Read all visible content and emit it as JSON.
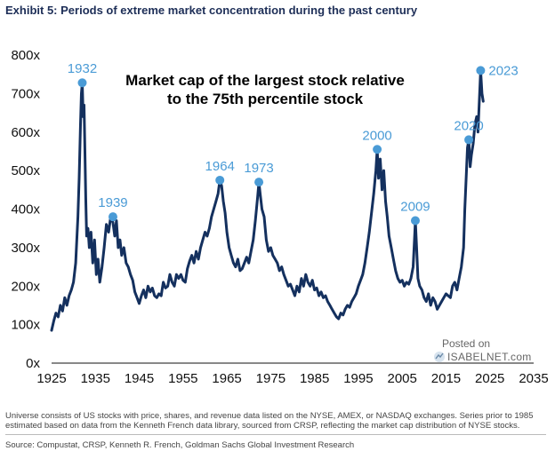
{
  "header": {
    "exhibit_title": "Exhibit 5: Periods of extreme market concentration during the past century"
  },
  "chart_data": {
    "type": "line",
    "title": "Market cap of the largest stock relative\nto the 75th percentile stock",
    "title_lines": [
      "Market cap of the largest stock relative",
      "to the 75th percentile stock"
    ],
    "xlabel": "",
    "ylabel": "",
    "xlim": [
      1925,
      2035
    ],
    "ylim": [
      0,
      800
    ],
    "x_ticks": [
      1925,
      1935,
      1945,
      1955,
      1965,
      1975,
      1985,
      1995,
      2005,
      2015,
      2025,
      2035
    ],
    "y_ticks": [
      0,
      100,
      200,
      300,
      400,
      500,
      600,
      700,
      800
    ],
    "y_tick_labels": [
      "0x",
      "100x",
      "200x",
      "300x",
      "400x",
      "500x",
      "600x",
      "700x",
      "800x"
    ],
    "series": [
      {
        "name": "Largest stock / 75th percentile stock",
        "color": "#14305e",
        "points": [
          [
            1925.0,
            85
          ],
          [
            1925.5,
            110
          ],
          [
            1926.0,
            130
          ],
          [
            1926.5,
            120
          ],
          [
            1927.0,
            150
          ],
          [
            1927.5,
            135
          ],
          [
            1928.0,
            170
          ],
          [
            1928.5,
            150
          ],
          [
            1929.0,
            175
          ],
          [
            1929.5,
            190
          ],
          [
            1930.0,
            210
          ],
          [
            1930.5,
            260
          ],
          [
            1931.0,
            380
          ],
          [
            1931.3,
            480
          ],
          [
            1931.6,
            620
          ],
          [
            1931.8,
            700
          ],
          [
            1932.0,
            728
          ],
          [
            1932.2,
            640
          ],
          [
            1932.4,
            670
          ],
          [
            1932.6,
            560
          ],
          [
            1932.8,
            430
          ],
          [
            1933.0,
            330
          ],
          [
            1933.3,
            350
          ],
          [
            1933.6,
            300
          ],
          [
            1934.0,
            340
          ],
          [
            1934.4,
            260
          ],
          [
            1934.8,
            320
          ],
          [
            1935.2,
            230
          ],
          [
            1935.6,
            270
          ],
          [
            1936.0,
            210
          ],
          [
            1936.5,
            250
          ],
          [
            1937.0,
            300
          ],
          [
            1937.5,
            360
          ],
          [
            1938.0,
            340
          ],
          [
            1938.5,
            380
          ],
          [
            1939.0,
            365
          ],
          [
            1939.4,
            330
          ],
          [
            1939.8,
            370
          ],
          [
            1940.2,
            300
          ],
          [
            1940.6,
            320
          ],
          [
            1941.0,
            280
          ],
          [
            1941.5,
            300
          ],
          [
            1942.0,
            260
          ],
          [
            1942.5,
            250
          ],
          [
            1943.0,
            230
          ],
          [
            1943.5,
            215
          ],
          [
            1944.0,
            185
          ],
          [
            1944.5,
            170
          ],
          [
            1945.0,
            155
          ],
          [
            1945.5,
            175
          ],
          [
            1946.0,
            190
          ],
          [
            1946.5,
            170
          ],
          [
            1947.0,
            200
          ],
          [
            1947.5,
            185
          ],
          [
            1948.0,
            195
          ],
          [
            1948.5,
            175
          ],
          [
            1949.0,
            170
          ],
          [
            1949.5,
            180
          ],
          [
            1950.0,
            175
          ],
          [
            1950.5,
            210
          ],
          [
            1951.0,
            195
          ],
          [
            1951.5,
            200
          ],
          [
            1952.0,
            230
          ],
          [
            1952.5,
            210
          ],
          [
            1953.0,
            200
          ],
          [
            1953.5,
            230
          ],
          [
            1954.0,
            220
          ],
          [
            1954.5,
            230
          ],
          [
            1955.0,
            215
          ],
          [
            1955.5,
            210
          ],
          [
            1956.0,
            245
          ],
          [
            1956.5,
            265
          ],
          [
            1957.0,
            280
          ],
          [
            1957.5,
            260
          ],
          [
            1958.0,
            290
          ],
          [
            1958.5,
            270
          ],
          [
            1959.0,
            300
          ],
          [
            1959.5,
            320
          ],
          [
            1960.0,
            340
          ],
          [
            1960.5,
            330
          ],
          [
            1961.0,
            350
          ],
          [
            1961.5,
            380
          ],
          [
            1962.0,
            400
          ],
          [
            1962.5,
            420
          ],
          [
            1963.0,
            440
          ],
          [
            1963.4,
            475
          ],
          [
            1963.8,
            460
          ],
          [
            1964.2,
            420
          ],
          [
            1964.6,
            390
          ],
          [
            1965.0,
            340
          ],
          [
            1965.5,
            300
          ],
          [
            1966.0,
            280
          ],
          [
            1966.5,
            260
          ],
          [
            1967.0,
            250
          ],
          [
            1967.5,
            270
          ],
          [
            1968.0,
            240
          ],
          [
            1968.5,
            245
          ],
          [
            1969.0,
            260
          ],
          [
            1969.5,
            275
          ],
          [
            1970.0,
            260
          ],
          [
            1970.5,
            290
          ],
          [
            1971.0,
            320
          ],
          [
            1971.5,
            370
          ],
          [
            1972.0,
            430
          ],
          [
            1972.3,
            470
          ],
          [
            1972.6,
            440
          ],
          [
            1973.0,
            400
          ],
          [
            1973.5,
            380
          ],
          [
            1974.0,
            320
          ],
          [
            1974.5,
            290
          ],
          [
            1975.0,
            300
          ],
          [
            1975.5,
            280
          ],
          [
            1976.0,
            270
          ],
          [
            1976.5,
            260
          ],
          [
            1977.0,
            240
          ],
          [
            1977.5,
            250
          ],
          [
            1978.0,
            230
          ],
          [
            1978.5,
            215
          ],
          [
            1979.0,
            200
          ],
          [
            1979.5,
            205
          ],
          [
            1980.0,
            190
          ],
          [
            1980.5,
            175
          ],
          [
            1981.0,
            200
          ],
          [
            1981.5,
            185
          ],
          [
            1982.0,
            220
          ],
          [
            1982.5,
            200
          ],
          [
            1983.0,
            230
          ],
          [
            1983.5,
            210
          ],
          [
            1984.0,
            200
          ],
          [
            1984.5,
            215
          ],
          [
            1985.0,
            190
          ],
          [
            1985.5,
            195
          ],
          [
            1986.0,
            175
          ],
          [
            1986.5,
            185
          ],
          [
            1987.0,
            170
          ],
          [
            1987.5,
            175
          ],
          [
            1988.0,
            160
          ],
          [
            1988.5,
            150
          ],
          [
            1989.0,
            140
          ],
          [
            1989.5,
            130
          ],
          [
            1990.0,
            120
          ],
          [
            1990.5,
            115
          ],
          [
            1991.0,
            130
          ],
          [
            1991.5,
            125
          ],
          [
            1992.0,
            140
          ],
          [
            1992.5,
            150
          ],
          [
            1993.0,
            145
          ],
          [
            1993.5,
            160
          ],
          [
            1994.0,
            170
          ],
          [
            1994.5,
            180
          ],
          [
            1995.0,
            200
          ],
          [
            1995.5,
            215
          ],
          [
            1996.0,
            230
          ],
          [
            1996.5,
            260
          ],
          [
            1997.0,
            300
          ],
          [
            1997.5,
            340
          ],
          [
            1998.0,
            390
          ],
          [
            1998.5,
            440
          ],
          [
            1999.0,
            500
          ],
          [
            1999.3,
            555
          ],
          [
            1999.6,
            480
          ],
          [
            2000.0,
            530
          ],
          [
            2000.4,
            450
          ],
          [
            2000.8,
            500
          ],
          [
            2001.2,
            420
          ],
          [
            2001.6,
            380
          ],
          [
            2002.0,
            330
          ],
          [
            2002.5,
            300
          ],
          [
            2003.0,
            270
          ],
          [
            2003.5,
            240
          ],
          [
            2004.0,
            220
          ],
          [
            2004.5,
            210
          ],
          [
            2005.0,
            215
          ],
          [
            2005.5,
            200
          ],
          [
            2006.0,
            210
          ],
          [
            2006.5,
            205
          ],
          [
            2007.0,
            220
          ],
          [
            2007.5,
            250
          ],
          [
            2007.8,
            320
          ],
          [
            2008.0,
            370
          ],
          [
            2008.3,
            300
          ],
          [
            2008.6,
            220
          ],
          [
            2009.0,
            200
          ],
          [
            2009.5,
            190
          ],
          [
            2010.0,
            170
          ],
          [
            2010.5,
            160
          ],
          [
            2011.0,
            180
          ],
          [
            2011.5,
            150
          ],
          [
            2012.0,
            170
          ],
          [
            2012.5,
            160
          ],
          [
            2013.0,
            140
          ],
          [
            2013.5,
            150
          ],
          [
            2014.0,
            160
          ],
          [
            2014.5,
            170
          ],
          [
            2015.0,
            180
          ],
          [
            2015.5,
            175
          ],
          [
            2016.0,
            170
          ],
          [
            2016.5,
            200
          ],
          [
            2017.0,
            210
          ],
          [
            2017.5,
            190
          ],
          [
            2018.0,
            220
          ],
          [
            2018.5,
            250
          ],
          [
            2019.0,
            300
          ],
          [
            2019.3,
            400
          ],
          [
            2019.6,
            480
          ],
          [
            2019.9,
            560
          ],
          [
            2020.2,
            580
          ],
          [
            2020.5,
            510
          ],
          [
            2020.8,
            540
          ],
          [
            2021.2,
            570
          ],
          [
            2021.6,
            620
          ],
          [
            2022.0,
            640
          ],
          [
            2022.3,
            600
          ],
          [
            2022.6,
            680
          ],
          [
            2022.9,
            760
          ],
          [
            2023.2,
            700
          ],
          [
            2023.5,
            680
          ]
        ]
      }
    ],
    "annotations": [
      {
        "label": "1932",
        "x": 1932.0,
        "y": 728
      },
      {
        "label": "1939",
        "x": 1939.0,
        "y": 380
      },
      {
        "label": "1964",
        "x": 1963.4,
        "y": 475
      },
      {
        "label": "1973",
        "x": 1972.3,
        "y": 470
      },
      {
        "label": "2000",
        "x": 1999.3,
        "y": 555
      },
      {
        "label": "2009",
        "x": 2008.0,
        "y": 370
      },
      {
        "label": "2020",
        "x": 2020.2,
        "y": 580
      },
      {
        "label": "2023",
        "x": 2022.9,
        "y": 760
      }
    ],
    "annotation_color": "#4a9bd6",
    "grid": false,
    "legend": "none"
  },
  "watermark": {
    "posted_on": "Posted on",
    "site": "ISABELNET.com"
  },
  "footer": {
    "note": "Universe consists of US stocks with price, shares, and revenue data listed on the NYSE, AMEX, or NASDAQ exchanges. Series prior to 1985 estimated based on data from the Kenneth French data library, sourced from CRSP, reflecting the market cap distribution of NYSE stocks.",
    "source": "Source: Compustat, CRSP, Kenneth R. French, Goldman Sachs Global Investment Research"
  }
}
